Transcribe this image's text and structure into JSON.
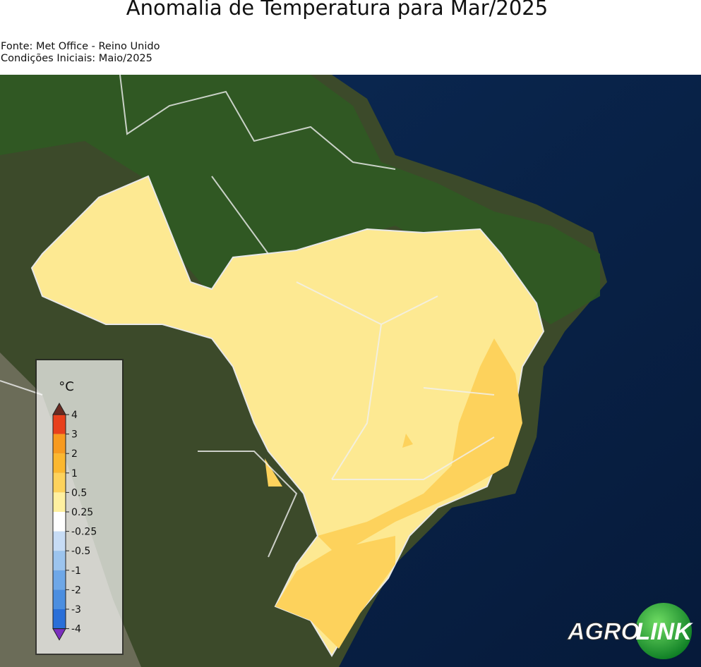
{
  "header": {
    "title": "Anomalia de Temperatura para Mar/2025",
    "source": "Fonte: Met Office - Reino Unido",
    "initial_conditions": "Condições Iniciais: Maio/2025"
  },
  "legend": {
    "unit": "°C",
    "ticks": [
      4,
      3,
      2,
      1,
      0.5,
      0.25,
      -0.25,
      -0.5,
      -1,
      -2,
      -3,
      -4
    ],
    "colors": [
      "#e8401c",
      "#f79a1f",
      "#fbb72f",
      "#fdd25c",
      "#fff0a0",
      "#ffffff",
      "#c7dcf5",
      "#9cc4ee",
      "#6ea7e7",
      "#4b8ee0",
      "#2a6fd8"
    ],
    "over_color": "#6b2a20",
    "under_color": "#7b2fbe"
  },
  "logo": {
    "left": "AGRO",
    "right": "LINK"
  }
}
